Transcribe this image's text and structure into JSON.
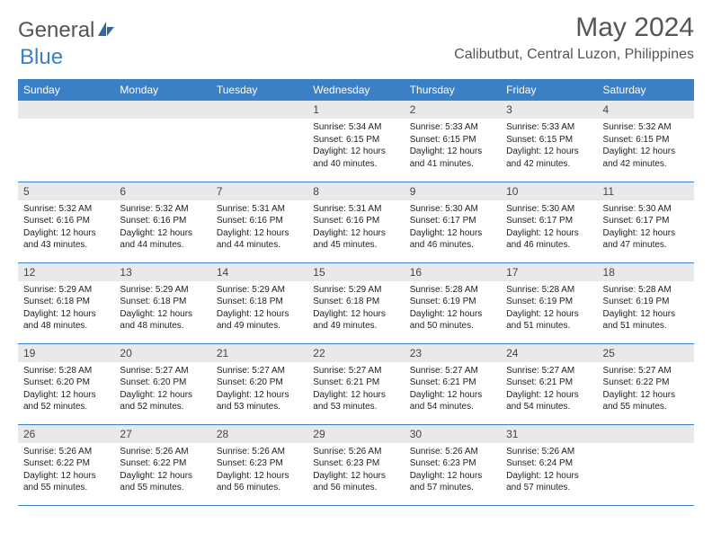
{
  "brand": {
    "part1": "General",
    "part2": "Blue"
  },
  "title": "May 2024",
  "location": "Calibutbut, Central Luzon, Philippines",
  "colors": {
    "header_bg": "#3b7fc4",
    "header_text": "#ffffff",
    "daynum_bg": "#e9e9e9",
    "border": "#3b7fc4",
    "brand_gray": "#555555",
    "brand_blue": "#3b7fc4"
  },
  "weekdays": [
    "Sunday",
    "Monday",
    "Tuesday",
    "Wednesday",
    "Thursday",
    "Friday",
    "Saturday"
  ],
  "weeks": [
    [
      {
        "empty": true
      },
      {
        "empty": true
      },
      {
        "empty": true
      },
      {
        "n": "1",
        "sr": "5:34 AM",
        "ss": "6:15 PM",
        "dl": "12 hours and 40 minutes."
      },
      {
        "n": "2",
        "sr": "5:33 AM",
        "ss": "6:15 PM",
        "dl": "12 hours and 41 minutes."
      },
      {
        "n": "3",
        "sr": "5:33 AM",
        "ss": "6:15 PM",
        "dl": "12 hours and 42 minutes."
      },
      {
        "n": "4",
        "sr": "5:32 AM",
        "ss": "6:15 PM",
        "dl": "12 hours and 42 minutes."
      }
    ],
    [
      {
        "n": "5",
        "sr": "5:32 AM",
        "ss": "6:16 PM",
        "dl": "12 hours and 43 minutes."
      },
      {
        "n": "6",
        "sr": "5:32 AM",
        "ss": "6:16 PM",
        "dl": "12 hours and 44 minutes."
      },
      {
        "n": "7",
        "sr": "5:31 AM",
        "ss": "6:16 PM",
        "dl": "12 hours and 44 minutes."
      },
      {
        "n": "8",
        "sr": "5:31 AM",
        "ss": "6:16 PM",
        "dl": "12 hours and 45 minutes."
      },
      {
        "n": "9",
        "sr": "5:30 AM",
        "ss": "6:17 PM",
        "dl": "12 hours and 46 minutes."
      },
      {
        "n": "10",
        "sr": "5:30 AM",
        "ss": "6:17 PM",
        "dl": "12 hours and 46 minutes."
      },
      {
        "n": "11",
        "sr": "5:30 AM",
        "ss": "6:17 PM",
        "dl": "12 hours and 47 minutes."
      }
    ],
    [
      {
        "n": "12",
        "sr": "5:29 AM",
        "ss": "6:18 PM",
        "dl": "12 hours and 48 minutes."
      },
      {
        "n": "13",
        "sr": "5:29 AM",
        "ss": "6:18 PM",
        "dl": "12 hours and 48 minutes."
      },
      {
        "n": "14",
        "sr": "5:29 AM",
        "ss": "6:18 PM",
        "dl": "12 hours and 49 minutes."
      },
      {
        "n": "15",
        "sr": "5:29 AM",
        "ss": "6:18 PM",
        "dl": "12 hours and 49 minutes."
      },
      {
        "n": "16",
        "sr": "5:28 AM",
        "ss": "6:19 PM",
        "dl": "12 hours and 50 minutes."
      },
      {
        "n": "17",
        "sr": "5:28 AM",
        "ss": "6:19 PM",
        "dl": "12 hours and 51 minutes."
      },
      {
        "n": "18",
        "sr": "5:28 AM",
        "ss": "6:19 PM",
        "dl": "12 hours and 51 minutes."
      }
    ],
    [
      {
        "n": "19",
        "sr": "5:28 AM",
        "ss": "6:20 PM",
        "dl": "12 hours and 52 minutes."
      },
      {
        "n": "20",
        "sr": "5:27 AM",
        "ss": "6:20 PM",
        "dl": "12 hours and 52 minutes."
      },
      {
        "n": "21",
        "sr": "5:27 AM",
        "ss": "6:20 PM",
        "dl": "12 hours and 53 minutes."
      },
      {
        "n": "22",
        "sr": "5:27 AM",
        "ss": "6:21 PM",
        "dl": "12 hours and 53 minutes."
      },
      {
        "n": "23",
        "sr": "5:27 AM",
        "ss": "6:21 PM",
        "dl": "12 hours and 54 minutes."
      },
      {
        "n": "24",
        "sr": "5:27 AM",
        "ss": "6:21 PM",
        "dl": "12 hours and 54 minutes."
      },
      {
        "n": "25",
        "sr": "5:27 AM",
        "ss": "6:22 PM",
        "dl": "12 hours and 55 minutes."
      }
    ],
    [
      {
        "n": "26",
        "sr": "5:26 AM",
        "ss": "6:22 PM",
        "dl": "12 hours and 55 minutes."
      },
      {
        "n": "27",
        "sr": "5:26 AM",
        "ss": "6:22 PM",
        "dl": "12 hours and 55 minutes."
      },
      {
        "n": "28",
        "sr": "5:26 AM",
        "ss": "6:23 PM",
        "dl": "12 hours and 56 minutes."
      },
      {
        "n": "29",
        "sr": "5:26 AM",
        "ss": "6:23 PM",
        "dl": "12 hours and 56 minutes."
      },
      {
        "n": "30",
        "sr": "5:26 AM",
        "ss": "6:23 PM",
        "dl": "12 hours and 57 minutes."
      },
      {
        "n": "31",
        "sr": "5:26 AM",
        "ss": "6:24 PM",
        "dl": "12 hours and 57 minutes."
      },
      {
        "empty": true
      }
    ]
  ],
  "labels": {
    "sunrise": "Sunrise: ",
    "sunset": "Sunset: ",
    "daylight": "Daylight: "
  }
}
